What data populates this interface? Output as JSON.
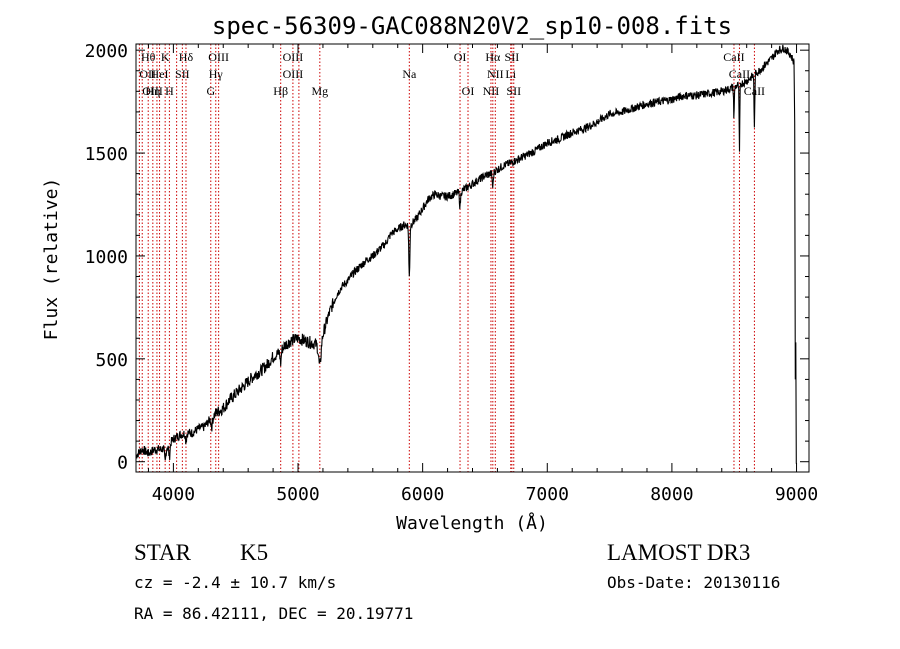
{
  "chart_data": {
    "type": "line",
    "title": "spec-56309-GAC088N20V2_sp10-008.fits",
    "xlabel": "Wavelength (Å)",
    "ylabel": "Flux (relative)",
    "xlim": [
      3700,
      9100
    ],
    "ylim": [
      -50,
      2030
    ],
    "x_ticks": [
      4000,
      5000,
      6000,
      7000,
      8000,
      9000
    ],
    "x_tick_labels": [
      "4000",
      "5000",
      "6000",
      "7000",
      "8000",
      "9000"
    ],
    "y_ticks": [
      0,
      500,
      1000,
      1500,
      2000
    ],
    "y_tick_labels": [
      "0",
      "500",
      "1000",
      "1500",
      "2000"
    ],
    "series": [
      {
        "name": "flux",
        "anchors": [
          [
            3700,
            30
          ],
          [
            3750,
            60
          ],
          [
            3800,
            40
          ],
          [
            3850,
            60
          ],
          [
            3900,
            60
          ],
          [
            3950,
            70
          ],
          [
            4000,
            110
          ],
          [
            4050,
            130
          ],
          [
            4100,
            140
          ],
          [
            4150,
            140
          ],
          [
            4200,
            160
          ],
          [
            4250,
            170
          ],
          [
            4300,
            210
          ],
          [
            4350,
            240
          ],
          [
            4400,
            260
          ],
          [
            4450,
            300
          ],
          [
            4500,
            330
          ],
          [
            4550,
            360
          ],
          [
            4600,
            390
          ],
          [
            4650,
            420
          ],
          [
            4700,
            440
          ],
          [
            4750,
            470
          ],
          [
            4800,
            510
          ],
          [
            4850,
            530
          ],
          [
            4900,
            570
          ],
          [
            4950,
            590
          ],
          [
            5000,
            600
          ],
          [
            5050,
            590
          ],
          [
            5100,
            580
          ],
          [
            5150,
            570
          ],
          [
            5200,
            620
          ],
          [
            5250,
            720
          ],
          [
            5300,
            800
          ],
          [
            5350,
            850
          ],
          [
            5400,
            880
          ],
          [
            5450,
            920
          ],
          [
            5500,
            950
          ],
          [
            5550,
            980
          ],
          [
            5600,
            1000
          ],
          [
            5650,
            1030
          ],
          [
            5700,
            1060
          ],
          [
            5750,
            1110
          ],
          [
            5800,
            1130
          ],
          [
            5850,
            1150
          ],
          [
            5900,
            1150
          ],
          [
            5950,
            1180
          ],
          [
            6000,
            1230
          ],
          [
            6050,
            1280
          ],
          [
            6100,
            1300
          ],
          [
            6150,
            1290
          ],
          [
            6200,
            1290
          ],
          [
            6250,
            1300
          ],
          [
            6300,
            1310
          ],
          [
            6350,
            1330
          ],
          [
            6400,
            1350
          ],
          [
            6450,
            1370
          ],
          [
            6500,
            1390
          ],
          [
            6550,
            1400
          ],
          [
            6600,
            1420
          ],
          [
            6650,
            1440
          ],
          [
            6700,
            1450
          ],
          [
            6800,
            1480
          ],
          [
            6900,
            1510
          ],
          [
            7000,
            1550
          ],
          [
            7100,
            1570
          ],
          [
            7200,
            1600
          ],
          [
            7300,
            1620
          ],
          [
            7400,
            1650
          ],
          [
            7500,
            1690
          ],
          [
            7600,
            1700
          ],
          [
            7700,
            1720
          ],
          [
            7800,
            1740
          ],
          [
            7900,
            1750
          ],
          [
            8000,
            1760
          ],
          [
            8100,
            1780
          ],
          [
            8200,
            1780
          ],
          [
            8300,
            1790
          ],
          [
            8400,
            1800
          ],
          [
            8500,
            1820
          ],
          [
            8600,
            1850
          ],
          [
            8700,
            1900
          ],
          [
            8800,
            1960
          ],
          [
            8850,
            2000
          ],
          [
            8900,
            2010
          ],
          [
            8950,
            1980
          ],
          [
            8980,
            1940
          ]
        ],
        "dips": [
          [
            3934,
            70,
            7
          ],
          [
            3968,
            60,
            7
          ],
          [
            4101,
            40,
            6
          ],
          [
            4308,
            40,
            8
          ],
          [
            4861,
            60,
            6
          ],
          [
            5175,
            130,
            14
          ],
          [
            5893,
            250,
            6
          ],
          [
            6300,
            70,
            6
          ],
          [
            6563,
            70,
            6
          ],
          [
            8498,
            150,
            4
          ],
          [
            8542,
            330,
            4
          ],
          [
            8662,
            270,
            4
          ]
        ]
      }
    ],
    "line_marks": {
      "color": "#cc0000",
      "wavelengths": [
        3727,
        3750,
        3798,
        3835,
        3868,
        3889,
        3934,
        3968,
        4026,
        4072,
        4101,
        4300,
        4340,
        4363,
        4861,
        4959,
        5007,
        5175,
        5893,
        6300,
        6364,
        6548,
        6563,
        6583,
        6707,
        6716,
        6731,
        8498,
        8542,
        8662
      ]
    },
    "annotations": [
      {
        "text": "Hθ",
        "x": 3798,
        "row": 1,
        "anchor": "middle"
      },
      {
        "text": "K",
        "x": 3934,
        "row": 1,
        "anchor": "middle"
      },
      {
        "text": "Hδ",
        "x": 4101,
        "row": 1,
        "anchor": "middle"
      },
      {
        "text": "OIII",
        "x": 4363,
        "row": 1,
        "anchor": "middle"
      },
      {
        "text": "OIII",
        "x": 4959,
        "row": 1,
        "anchor": "middle"
      },
      {
        "text": "OI",
        "x": 6300,
        "row": 1,
        "anchor": "middle"
      },
      {
        "text": "Hα",
        "x": 6563,
        "row": 1,
        "anchor": "middle"
      },
      {
        "text": "SII",
        "x": 6716,
        "row": 1,
        "anchor": "middle"
      },
      {
        "text": "CaII",
        "x": 8498,
        "row": 1,
        "anchor": "middle"
      },
      {
        "text": "OII",
        "x": 3727,
        "row": 2,
        "anchor": "start"
      },
      {
        "text": "HeI",
        "x": 3889,
        "row": 2,
        "anchor": "middle"
      },
      {
        "text": "SII",
        "x": 4072,
        "row": 2,
        "anchor": "middle"
      },
      {
        "text": "Hγ",
        "x": 4340,
        "row": 2,
        "anchor": "middle"
      },
      {
        "text": "OIII",
        "x": 4959,
        "row": 2,
        "anchor": "middle"
      },
      {
        "text": "Na",
        "x": 5893,
        "row": 2,
        "anchor": "middle"
      },
      {
        "text": "NII",
        "x": 6583,
        "row": 2,
        "anchor": "middle"
      },
      {
        "text": "Li",
        "x": 6707,
        "row": 2,
        "anchor": "middle"
      },
      {
        "text": "CaII",
        "x": 8542,
        "row": 2,
        "anchor": "middle"
      },
      {
        "text": "OIII",
        "x": 3750,
        "row": 3,
        "anchor": "start"
      },
      {
        "text": "Hη",
        "x": 3835,
        "row": 3,
        "anchor": "middle"
      },
      {
        "text": "H",
        "x": 3968,
        "row": 3,
        "anchor": "middle"
      },
      {
        "text": "G",
        "x": 4300,
        "row": 3,
        "anchor": "middle"
      },
      {
        "text": "Hβ",
        "x": 4861,
        "row": 3,
        "anchor": "middle"
      },
      {
        "text": "Mg",
        "x": 5175,
        "row": 3,
        "anchor": "middle"
      },
      {
        "text": "OI",
        "x": 6364,
        "row": 3,
        "anchor": "middle"
      },
      {
        "text": "NII",
        "x": 6548,
        "row": 3,
        "anchor": "middle"
      },
      {
        "text": "SII",
        "x": 6731,
        "row": 3,
        "anchor": "middle"
      },
      {
        "text": "CaII",
        "x": 8662,
        "row": 3,
        "anchor": "middle"
      }
    ]
  },
  "info": {
    "class": "STAR",
    "subclass": "K5",
    "survey": "LAMOST DR3",
    "redshift": "cz = -2.4 ± 10.7 km/s",
    "obs_date": "Obs-Date: 20130116",
    "coords": "RA =  86.42111, DEC =  20.19771"
  }
}
